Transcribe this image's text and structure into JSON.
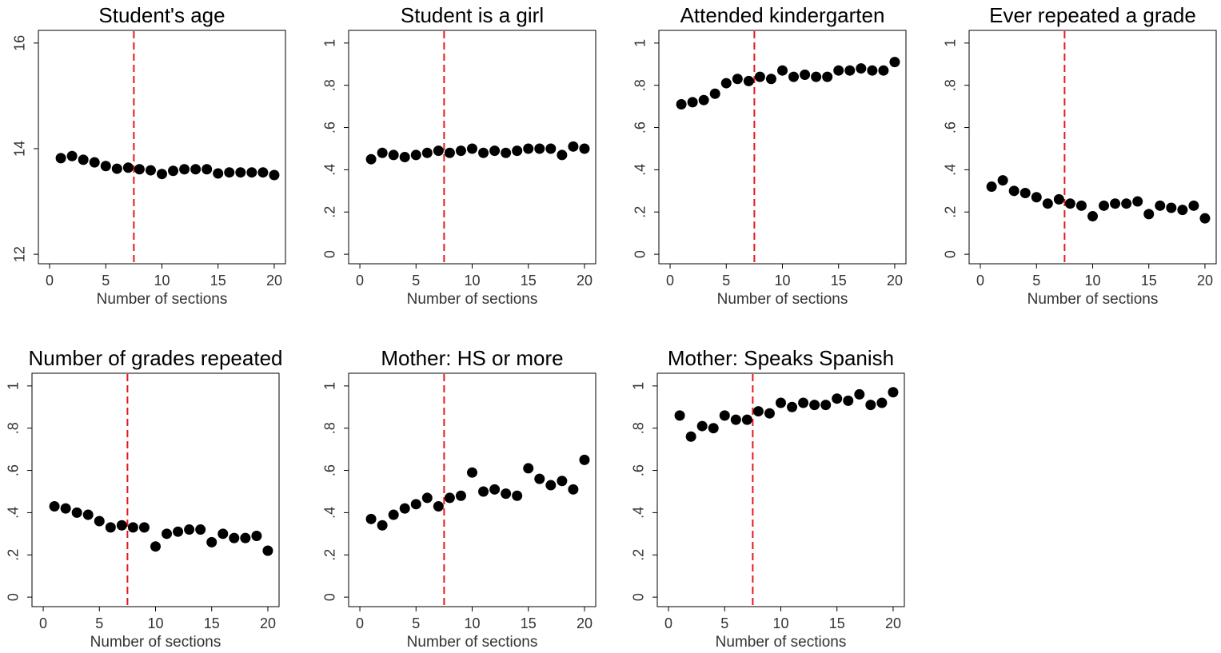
{
  "chart_data": [
    {
      "type": "scatter",
      "title": "Student's age",
      "xlabel": "Number of sections",
      "x": [
        1,
        2,
        3,
        4,
        5,
        6,
        7,
        8,
        9,
        10,
        11,
        12,
        13,
        14,
        15,
        16,
        17,
        18,
        19,
        20
      ],
      "values": [
        13.82,
        13.86,
        13.79,
        13.74,
        13.67,
        13.62,
        13.64,
        13.61,
        13.59,
        13.52,
        13.58,
        13.61,
        13.61,
        13.61,
        13.53,
        13.55,
        13.55,
        13.55,
        13.55,
        13.5
      ],
      "color": "#000000",
      "xlim": [
        -1,
        21
      ],
      "ylim": [
        11.82,
        16.24
      ],
      "xticks": [
        0,
        5,
        10,
        15,
        20
      ],
      "yticks": [
        12,
        14,
        16
      ],
      "vline": 7.5,
      "vline_color": "#e41a1c"
    },
    {
      "type": "scatter",
      "title": "Student is a girl",
      "xlabel": "Number of sections",
      "x": [
        1,
        2,
        3,
        4,
        5,
        6,
        7,
        8,
        9,
        10,
        11,
        12,
        13,
        14,
        15,
        16,
        17,
        18,
        19,
        20
      ],
      "values": [
        0.45,
        0.48,
        0.47,
        0.46,
        0.47,
        0.48,
        0.49,
        0.48,
        0.49,
        0.5,
        0.48,
        0.49,
        0.48,
        0.49,
        0.5,
        0.5,
        0.5,
        0.47,
        0.51,
        0.5
      ],
      "color": "#000000",
      "xlim": [
        -1,
        21
      ],
      "ylim": [
        -0.045,
        1.06
      ],
      "xticks": [
        0,
        5,
        10,
        15,
        20
      ],
      "yticks": [
        0,
        {
          "value": 0.2,
          "label": ".2"
        },
        {
          "value": 0.4,
          "label": ".4"
        },
        {
          "value": 0.6,
          "label": ".6"
        },
        {
          "value": 0.8,
          "label": ".8"
        },
        1
      ],
      "vline": 7.5,
      "vline_color": "#e41a1c"
    },
    {
      "type": "scatter",
      "title": "Attended kindergarten",
      "xlabel": "Number of sections",
      "x": [
        1,
        2,
        3,
        4,
        5,
        6,
        7,
        8,
        9,
        10,
        11,
        12,
        13,
        14,
        15,
        16,
        17,
        18,
        19,
        20
      ],
      "values": [
        0.71,
        0.72,
        0.73,
        0.76,
        0.81,
        0.83,
        0.82,
        0.84,
        0.83,
        0.87,
        0.84,
        0.85,
        0.84,
        0.84,
        0.87,
        0.87,
        0.88,
        0.87,
        0.87,
        0.91
      ],
      "color": "#000000",
      "xlim": [
        -1,
        21
      ],
      "ylim": [
        -0.045,
        1.06
      ],
      "xticks": [
        0,
        5,
        10,
        15,
        20
      ],
      "yticks": [
        0,
        {
          "value": 0.2,
          "label": ".2"
        },
        {
          "value": 0.4,
          "label": ".4"
        },
        {
          "value": 0.6,
          "label": ".6"
        },
        {
          "value": 0.8,
          "label": ".8"
        },
        1
      ],
      "vline": 7.5,
      "vline_color": "#e41a1c"
    },
    {
      "type": "scatter",
      "title": "Ever repeated a grade",
      "xlabel": "Number of sections",
      "x": [
        1,
        2,
        3,
        4,
        5,
        6,
        7,
        8,
        9,
        10,
        11,
        12,
        13,
        14,
        15,
        16,
        17,
        18,
        19,
        20
      ],
      "values": [
        0.32,
        0.35,
        0.3,
        0.29,
        0.27,
        0.24,
        0.26,
        0.24,
        0.23,
        0.18,
        0.23,
        0.24,
        0.24,
        0.25,
        0.19,
        0.23,
        0.22,
        0.21,
        0.23,
        0.17
      ],
      "color": "#000000",
      "xlim": [
        -1,
        21
      ],
      "ylim": [
        -0.045,
        1.06
      ],
      "xticks": [
        0,
        5,
        10,
        15,
        20
      ],
      "yticks": [
        0,
        {
          "value": 0.2,
          "label": ".2"
        },
        {
          "value": 0.4,
          "label": ".4"
        },
        {
          "value": 0.6,
          "label": ".6"
        },
        {
          "value": 0.8,
          "label": ".8"
        },
        1
      ],
      "vline": 7.5,
      "vline_color": "#e41a1c"
    },
    {
      "type": "scatter",
      "title": "Number of grades repeated",
      "xlabel": "Number of sections",
      "x": [
        1,
        2,
        3,
        4,
        5,
        6,
        7,
        8,
        9,
        10,
        11,
        12,
        13,
        14,
        15,
        16,
        17,
        18,
        19,
        20
      ],
      "values": [
        0.43,
        0.42,
        0.4,
        0.39,
        0.36,
        0.33,
        0.34,
        0.33,
        0.33,
        0.24,
        0.3,
        0.31,
        0.32,
        0.32,
        0.26,
        0.3,
        0.28,
        0.28,
        0.29,
        0.22
      ],
      "color": "#000000",
      "xlim": [
        -1,
        21
      ],
      "ylim": [
        -0.045,
        1.06
      ],
      "xticks": [
        0,
        5,
        10,
        15,
        20
      ],
      "yticks": [
        0,
        {
          "value": 0.2,
          "label": ".2"
        },
        {
          "value": 0.4,
          "label": ".4"
        },
        {
          "value": 0.6,
          "label": ".6"
        },
        {
          "value": 0.8,
          "label": ".8"
        },
        1
      ],
      "vline": 7.5,
      "vline_color": "#e41a1c"
    },
    {
      "type": "scatter",
      "title": "Mother: HS or more",
      "xlabel": "Number of sections",
      "x": [
        1,
        2,
        3,
        4,
        5,
        6,
        7,
        8,
        9,
        10,
        11,
        12,
        13,
        14,
        15,
        16,
        17,
        18,
        19,
        20
      ],
      "values": [
        0.37,
        0.34,
        0.39,
        0.42,
        0.44,
        0.47,
        0.43,
        0.47,
        0.48,
        0.59,
        0.5,
        0.51,
        0.49,
        0.48,
        0.61,
        0.56,
        0.53,
        0.55,
        0.51,
        0.65
      ],
      "color": "#000000",
      "xlim": [
        -1,
        21
      ],
      "ylim": [
        -0.045,
        1.06
      ],
      "xticks": [
        0,
        5,
        10,
        15,
        20
      ],
      "yticks": [
        0,
        {
          "value": 0.2,
          "label": ".2"
        },
        {
          "value": 0.4,
          "label": ".4"
        },
        {
          "value": 0.6,
          "label": ".6"
        },
        {
          "value": 0.8,
          "label": ".8"
        },
        1
      ],
      "vline": 7.5,
      "vline_color": "#e41a1c"
    },
    {
      "type": "scatter",
      "title": "Mother: Speaks Spanish",
      "xlabel": "Number of sections",
      "x": [
        1,
        2,
        3,
        4,
        5,
        6,
        7,
        8,
        9,
        10,
        11,
        12,
        13,
        14,
        15,
        16,
        17,
        18,
        19,
        20
      ],
      "values": [
        0.86,
        0.76,
        0.81,
        0.8,
        0.86,
        0.84,
        0.84,
        0.88,
        0.87,
        0.92,
        0.9,
        0.92,
        0.91,
        0.91,
        0.94,
        0.93,
        0.96,
        0.91,
        0.92,
        0.97
      ],
      "color": "#000000",
      "xlim": [
        -1,
        21
      ],
      "ylim": [
        -0.045,
        1.06
      ],
      "xticks": [
        0,
        5,
        10,
        15,
        20
      ],
      "yticks": [
        0,
        {
          "value": 0.2,
          "label": ".2"
        },
        {
          "value": 0.4,
          "label": ".4"
        },
        {
          "value": 0.6,
          "label": ".6"
        },
        {
          "value": 0.8,
          "label": ".8"
        },
        1
      ],
      "vline": 7.5,
      "vline_color": "#e41a1c"
    }
  ]
}
